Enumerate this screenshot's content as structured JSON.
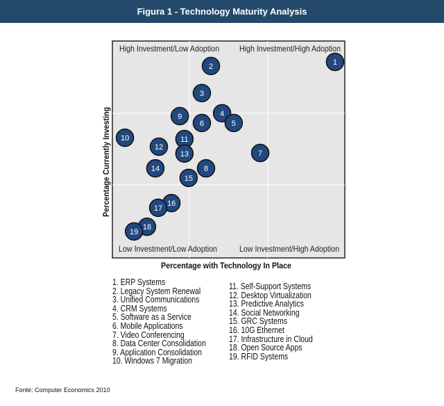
{
  "header": {
    "title": "Figura 1 - Technology Maturity Analysis"
  },
  "chart_data": {
    "type": "scatter",
    "title": "Figura 1 - Technology Maturity Analysis",
    "xlabel": "Percentage with Technology In Place",
    "ylabel": "Percentage Currently Investing",
    "xlim": [
      0,
      100
    ],
    "ylim": [
      0,
      100
    ],
    "grid": true,
    "quadrants": {
      "top_left": "High Investment/Low Adoption",
      "top_right": "High Investment/High Adoption",
      "bottom_left": "Low Investment/Low Adoption",
      "bottom_right": "Low Investment/High Adoption"
    },
    "points": [
      {
        "id": "1",
        "name": "ERP Systems",
        "x": 95.8,
        "y": 90.4
      },
      {
        "id": "2",
        "name": "Legacy System Renewal",
        "x": 42.4,
        "y": 88.5
      },
      {
        "id": "3",
        "name": "Unified Communications",
        "x": 38.5,
        "y": 76.0
      },
      {
        "id": "4",
        "name": "CRM Systems",
        "x": 47.2,
        "y": 66.7
      },
      {
        "id": "5",
        "name": "Software as a Service",
        "x": 52.2,
        "y": 62.2
      },
      {
        "id": "6",
        "name": "Mobile Applications",
        "x": 38.5,
        "y": 62.2
      },
      {
        "id": "7",
        "name": "Video Conferencing",
        "x": 63.6,
        "y": 48.4
      },
      {
        "id": "8",
        "name": "Data Center Consolidation",
        "x": 40.3,
        "y": 41.3
      },
      {
        "id": "9",
        "name": "Application Consolidation",
        "x": 29.0,
        "y": 65.4
      },
      {
        "id": "10",
        "name": "Windows 7 Migration",
        "x": 5.4,
        "y": 55.4
      },
      {
        "id": "11",
        "name": "Self-Support Systems",
        "x": 31.0,
        "y": 54.8
      },
      {
        "id": "12",
        "name": "Desktop Virtualization",
        "x": 20.0,
        "y": 51.3
      },
      {
        "id": "13",
        "name": "Predictive Analytics",
        "x": 31.0,
        "y": 48.1
      },
      {
        "id": "14",
        "name": "Social Networking",
        "x": 18.5,
        "y": 41.3
      },
      {
        "id": "15",
        "name": "GRC Systems",
        "x": 32.8,
        "y": 36.9
      },
      {
        "id": "16",
        "name": "10G Ethernet",
        "x": 25.4,
        "y": 25.3
      },
      {
        "id": "17",
        "name": "Infrastructure in Cloud",
        "x": 19.7,
        "y": 23.1
      },
      {
        "id": "18",
        "name": "Open Source Apps",
        "x": 14.9,
        "y": 14.4
      },
      {
        "id": "19",
        "name": "RFID Systems",
        "x": 9.3,
        "y": 12.2
      }
    ],
    "legend_left": [
      "1. ERP Systems",
      "2. Legacy System Renewal",
      "3. Unified Communications",
      "4. CRM Systems",
      "5. Software as a Service",
      "6. Mobile Applications",
      "7. Video Conferencing",
      "8. Data Center Consolidation",
      "9. Application Consolidation",
      "10. Windows 7 Migration"
    ],
    "legend_right": [
      "11. Self-Support Systems",
      "12. Desktop Virtualization",
      "13. Predictive Analytics",
      "14. Social Networking",
      "15. GRC Systems",
      "16. 10G Ethernet",
      "17. Infrastructure in Cloud",
      "18. Open Source Apps",
      "19. RFID Systems"
    ]
  },
  "colors": {
    "header": "#234a6b",
    "bubble": "#22497f",
    "plot_bg": "#e6e6e6"
  },
  "source": "Fonte: Computer Economics 2010"
}
